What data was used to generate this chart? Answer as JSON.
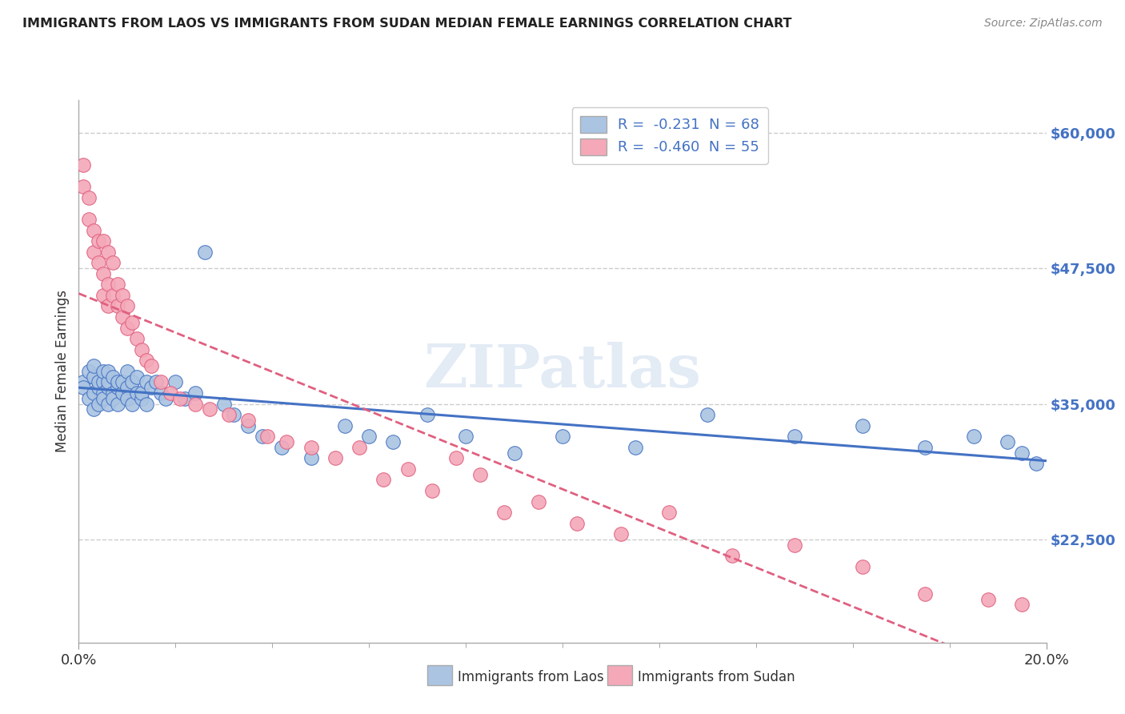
{
  "title": "IMMIGRANTS FROM LAOS VS IMMIGRANTS FROM SUDAN MEDIAN FEMALE EARNINGS CORRELATION CHART",
  "source": "Source: ZipAtlas.com",
  "ylabel": "Median Female Earnings",
  "yticks": [
    22500,
    35000,
    47500,
    60000
  ],
  "ytick_labels": [
    "$22,500",
    "$35,000",
    "$47,500",
    "$60,000"
  ],
  "xmin": 0.0,
  "xmax": 0.2,
  "ymin": 13000,
  "ymax": 63000,
  "laos_R": "-0.231",
  "laos_N": "68",
  "sudan_R": "-0.460",
  "sudan_N": "55",
  "laos_color": "#aac4e2",
  "sudan_color": "#f4a8b8",
  "laos_line_color": "#4472c4",
  "sudan_line_color": "#e06080",
  "legend_laos": "Immigrants from Laos",
  "legend_sudan": "Immigrants from Sudan",
  "watermark": "ZIPatlas",
  "background_color": "#ffffff",
  "laos_scatter_x": [
    0.001,
    0.001,
    0.002,
    0.002,
    0.003,
    0.003,
    0.003,
    0.003,
    0.004,
    0.004,
    0.004,
    0.005,
    0.005,
    0.005,
    0.005,
    0.006,
    0.006,
    0.006,
    0.006,
    0.007,
    0.007,
    0.007,
    0.008,
    0.008,
    0.008,
    0.009,
    0.009,
    0.01,
    0.01,
    0.01,
    0.011,
    0.011,
    0.012,
    0.012,
    0.013,
    0.013,
    0.014,
    0.014,
    0.015,
    0.016,
    0.017,
    0.018,
    0.02,
    0.022,
    0.024,
    0.026,
    0.03,
    0.032,
    0.035,
    0.038,
    0.042,
    0.048,
    0.055,
    0.06,
    0.065,
    0.072,
    0.08,
    0.09,
    0.1,
    0.115,
    0.13,
    0.148,
    0.162,
    0.175,
    0.185,
    0.192,
    0.195,
    0.198
  ],
  "laos_scatter_y": [
    37000,
    36500,
    38000,
    35500,
    37500,
    36000,
    38500,
    34500,
    36500,
    37000,
    35000,
    37000,
    36000,
    38000,
    35500,
    36500,
    37000,
    35000,
    38000,
    36000,
    37500,
    35500,
    36500,
    37000,
    35000,
    36000,
    37000,
    36500,
    38000,
    35500,
    37000,
    35000,
    36000,
    37500,
    35500,
    36000,
    37000,
    35000,
    36500,
    37000,
    36000,
    35500,
    37000,
    35500,
    36000,
    49000,
    35000,
    34000,
    33000,
    32000,
    31000,
    30000,
    33000,
    32000,
    31500,
    34000,
    32000,
    30500,
    32000,
    31000,
    34000,
    32000,
    33000,
    31000,
    32000,
    31500,
    30500,
    29500
  ],
  "sudan_scatter_x": [
    0.001,
    0.001,
    0.002,
    0.002,
    0.003,
    0.003,
    0.004,
    0.004,
    0.005,
    0.005,
    0.005,
    0.006,
    0.006,
    0.006,
    0.007,
    0.007,
    0.008,
    0.008,
    0.009,
    0.009,
    0.01,
    0.01,
    0.011,
    0.012,
    0.013,
    0.014,
    0.015,
    0.017,
    0.019,
    0.021,
    0.024,
    0.027,
    0.031,
    0.035,
    0.039,
    0.043,
    0.048,
    0.053,
    0.058,
    0.063,
    0.068,
    0.073,
    0.078,
    0.083,
    0.088,
    0.095,
    0.103,
    0.112,
    0.122,
    0.135,
    0.148,
    0.162,
    0.175,
    0.188,
    0.195
  ],
  "sudan_scatter_y": [
    57000,
    55000,
    54000,
    52000,
    51000,
    49000,
    50000,
    48000,
    47000,
    50000,
    45000,
    46000,
    49000,
    44000,
    45000,
    48000,
    44000,
    46000,
    43000,
    45000,
    42000,
    44000,
    42500,
    41000,
    40000,
    39000,
    38500,
    37000,
    36000,
    35500,
    35000,
    34500,
    34000,
    33500,
    32000,
    31500,
    31000,
    30000,
    31000,
    28000,
    29000,
    27000,
    30000,
    28500,
    25000,
    26000,
    24000,
    23000,
    25000,
    21000,
    22000,
    20000,
    17500,
    17000,
    16500
  ]
}
